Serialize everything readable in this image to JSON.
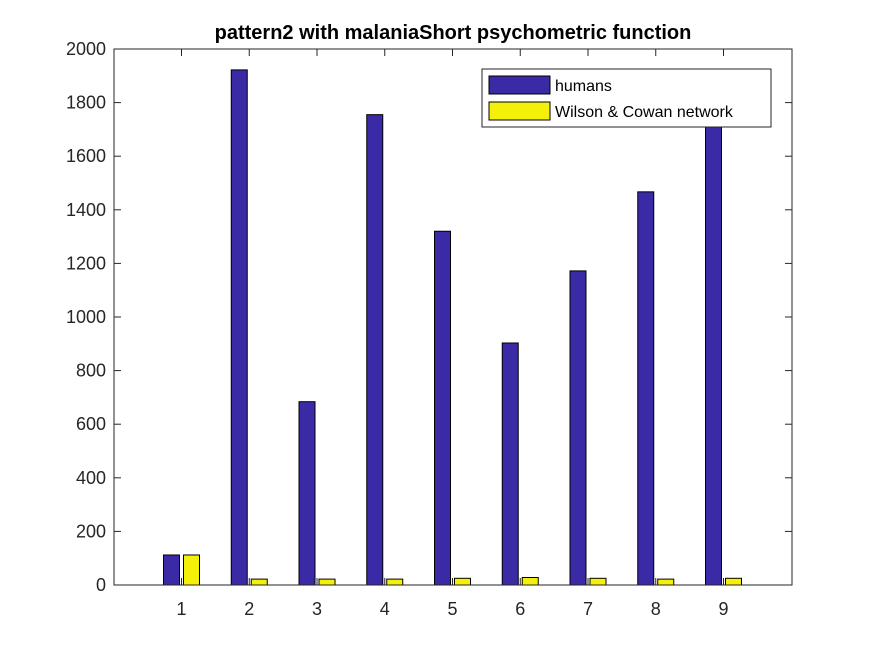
{
  "chart_data": {
    "type": "bar",
    "title": "pattern2 with malaniaShort psychometric function",
    "xlabel": "",
    "ylabel": "",
    "categories": [
      "1",
      "2",
      "3",
      "4",
      "5",
      "6",
      "7",
      "8",
      "9"
    ],
    "series": [
      {
        "name": "humans",
        "color": "#3a2aa6",
        "values": [
          112,
          1922,
          684,
          1755,
          1320,
          903,
          1172,
          1467,
          1725
        ]
      },
      {
        "name": "Wilson & Cowan network",
        "color": "#f5f00a",
        "values": [
          112,
          22,
          22,
          22,
          25,
          28,
          25,
          22,
          25
        ]
      }
    ],
    "ylim": [
      0,
      2000
    ],
    "yticks": [
      "0",
      "200",
      "400",
      "600",
      "800",
      "1000",
      "1200",
      "1400",
      "1600",
      "1800",
      "2000"
    ],
    "grid": false,
    "legend_position": "top-right"
  }
}
